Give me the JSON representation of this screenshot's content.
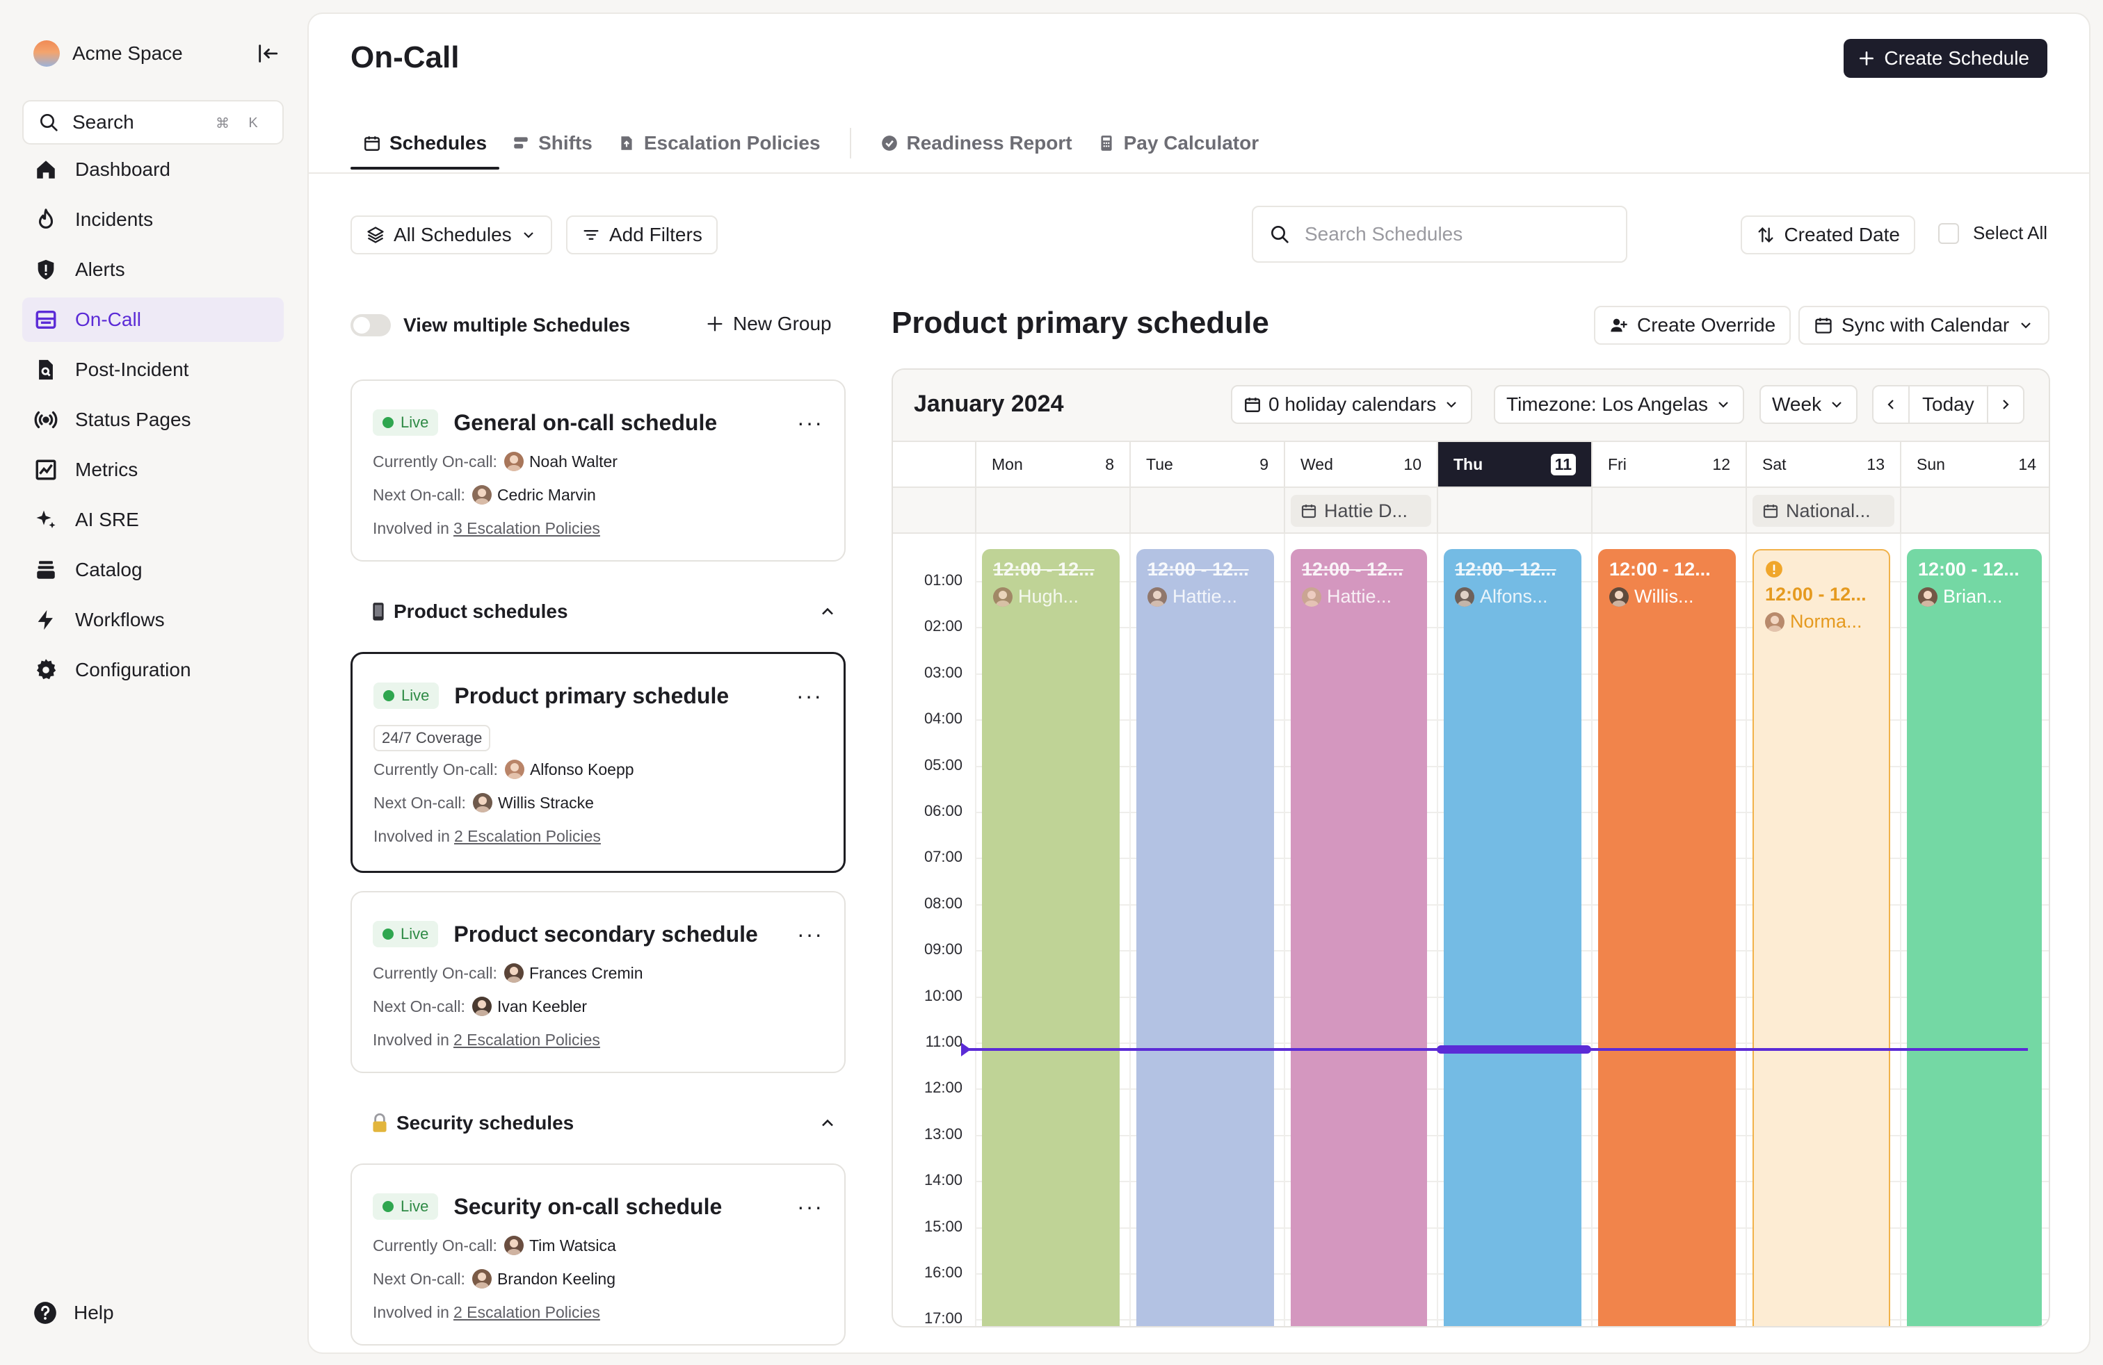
{
  "workspace": {
    "name": "Acme Space"
  },
  "search": {
    "label": "Search",
    "kbd_cmd": "⌘",
    "kbd_key": "K"
  },
  "nav": [
    {
      "label": "Dashboard",
      "icon": "home-icon"
    },
    {
      "label": "Incidents",
      "icon": "flame-icon"
    },
    {
      "label": "Alerts",
      "icon": "shield-alert-icon"
    },
    {
      "label": "On-Call",
      "icon": "calendar-layout-icon",
      "active": true
    },
    {
      "label": "Post-Incident",
      "icon": "document-search-icon"
    },
    {
      "label": "Status Pages",
      "icon": "broadcast-icon"
    },
    {
      "label": "Metrics",
      "icon": "chart-icon"
    },
    {
      "label": "AI SRE",
      "icon": "sparkles-icon"
    },
    {
      "label": "Catalog",
      "icon": "stack-icon"
    },
    {
      "label": "Workflows",
      "icon": "lightning-icon"
    },
    {
      "label": "Configuration",
      "icon": "gear-icon"
    }
  ],
  "help": {
    "label": "Help"
  },
  "page": {
    "title": "On-Call",
    "create_label": "Create Schedule"
  },
  "tabs": [
    {
      "label": "Schedules",
      "active": true
    },
    {
      "label": "Shifts"
    },
    {
      "label": "Escalation Policies"
    },
    {
      "label": "Readiness Report"
    },
    {
      "label": "Pay Calculator"
    }
  ],
  "filters": {
    "all_schedules": "All Schedules",
    "add_filters": "Add Filters",
    "search_placeholder": "Search Schedules",
    "sort_label": "Created Date",
    "select_all": "Select All"
  },
  "list": {
    "view_multiple": "View multiple Schedules",
    "new_group": "New Group",
    "labels": {
      "live": "Live",
      "currently": "Currently On-call:",
      "next": "Next On-call:",
      "involved": "Involved in"
    },
    "general": {
      "title": "General on-call schedule",
      "current": "Noah Walter",
      "next": "Cedric Marvin",
      "policies": "3 Escalation Policies"
    },
    "groups": [
      {
        "name": "Product schedules",
        "emoji": "📱",
        "cards": [
          {
            "title": "Product primary schedule",
            "coverage": "24/7 Coverage",
            "current": "Alfonso Koepp",
            "next": "Willis Stracke",
            "policies": "2 Escalation Policies"
          },
          {
            "title": "Product secondary schedule",
            "current": "Frances Cremin",
            "next": "Ivan Keebler",
            "policies": "2 Escalation Policies"
          }
        ]
      },
      {
        "name": "Security schedules",
        "emoji": "🔒",
        "cards": [
          {
            "title": "Security on-call schedule",
            "current": "Tim Watsica",
            "next": "Brandon Keeling",
            "policies": "2 Escalation Policies"
          }
        ]
      }
    ]
  },
  "calendar": {
    "schedule_title": "Product primary schedule",
    "create_override": "Create Override",
    "sync": "Sync with Calendar",
    "month": "January 2024",
    "holiday_calendars": "0 holiday calendars",
    "timezone": "Timezone: Los Angelas",
    "view": "Week",
    "today_label": "Today",
    "days": [
      {
        "name": "Mon",
        "num": "8"
      },
      {
        "name": "Tue",
        "num": "9"
      },
      {
        "name": "Wed",
        "num": "10"
      },
      {
        "name": "Thu",
        "num": "11",
        "today": true
      },
      {
        "name": "Fri",
        "num": "12"
      },
      {
        "name": "Sat",
        "num": "13"
      },
      {
        "name": "Sun",
        "num": "14"
      }
    ],
    "all_day": {
      "wed": "Hattie D...",
      "sat": "National..."
    },
    "hours": [
      "01:00",
      "02:00",
      "03:00",
      "04:00",
      "05:00",
      "06:00",
      "07:00",
      "08:00",
      "09:00",
      "10:00",
      "11:00",
      "12:00",
      "13:00",
      "14:00",
      "15:00",
      "16:00",
      "17:00"
    ],
    "shifts": [
      {
        "time": "12:00 - 12...",
        "person": "Hugh...",
        "color": "#bfd396",
        "past": true
      },
      {
        "time": "12:00 - 12...",
        "person": "Hattie...",
        "color": "#b3c2e3",
        "past": true
      },
      {
        "time": "12:00 - 12...",
        "person": "Hattie...",
        "color": "#d497bf",
        "past": true
      },
      {
        "time": "12:00 - 12...",
        "person": "Alfons...",
        "color": "#74bbe4",
        "past": true
      },
      {
        "time": "12:00 - 12...",
        "person": "Willis...",
        "color": "#f1844b"
      },
      {
        "time": "12:00 - 12...",
        "person": "Norma...",
        "color": "#fdecd3",
        "warning": true
      },
      {
        "time": "12:00 - 12...",
        "person": "Brian...",
        "color": "#74d8a4"
      }
    ],
    "now_color": "#5b2bd6"
  },
  "colors": {
    "accent": "#5b2bd6",
    "live": "#2fa64f"
  }
}
